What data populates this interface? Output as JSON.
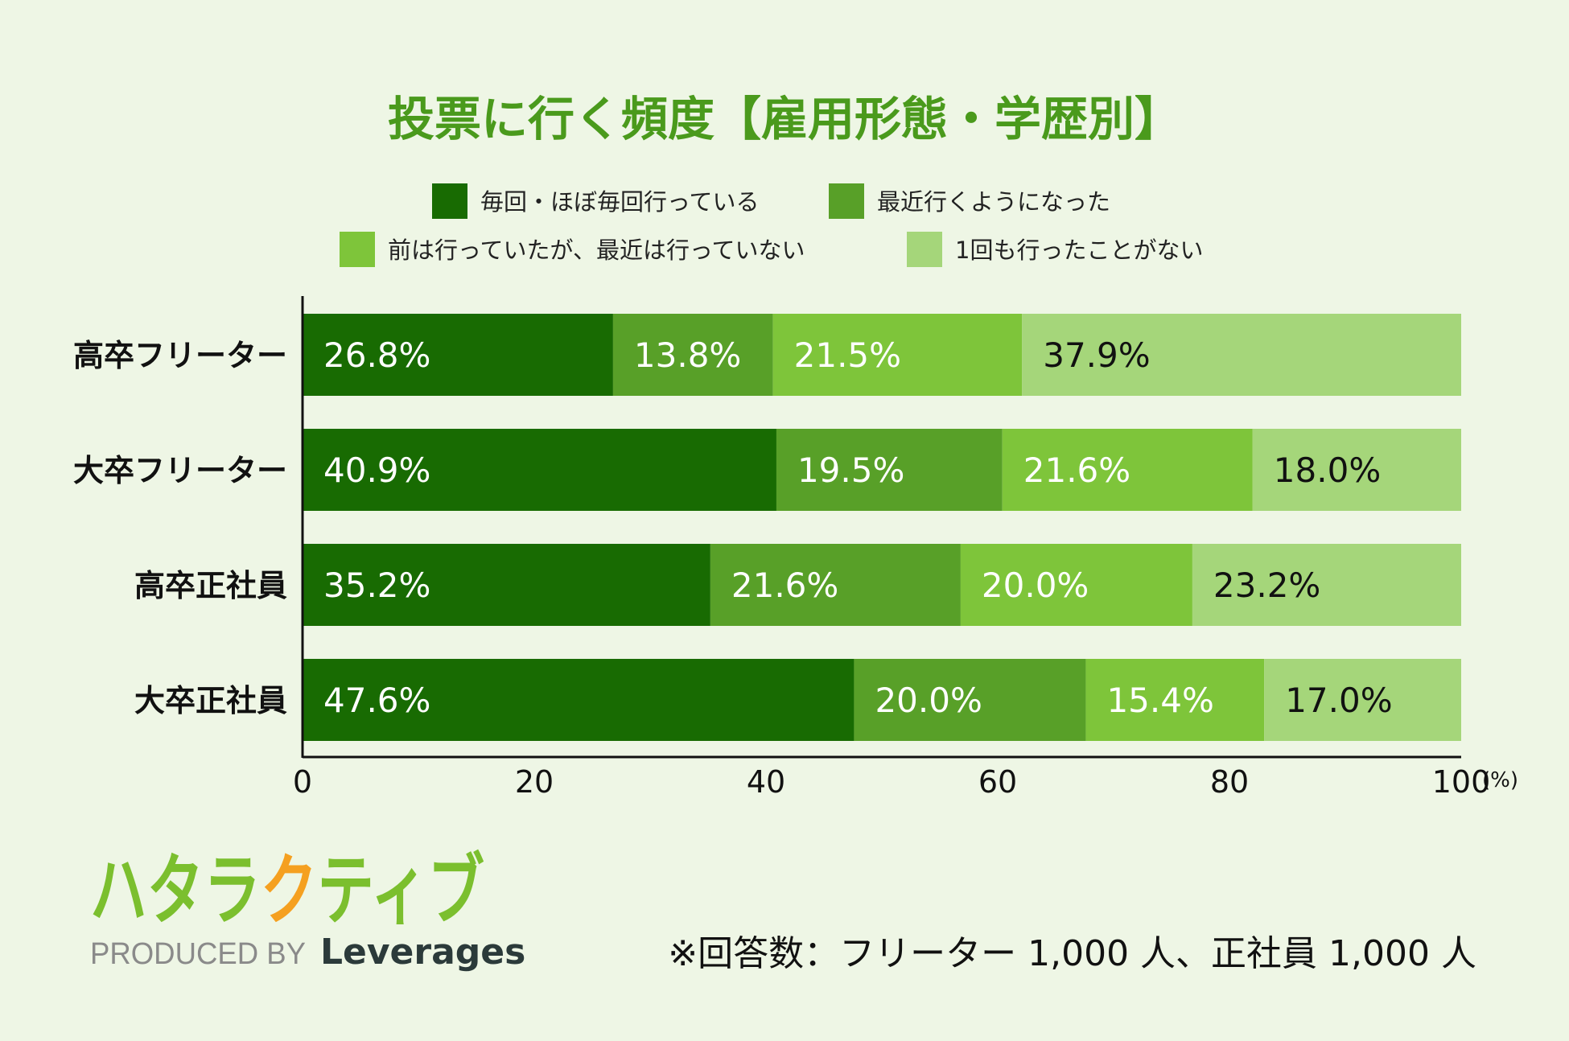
{
  "chart_data": {
    "type": "bar",
    "orientation": "horizontal",
    "stacked": true,
    "title": "投票に行く頻度【雇用形態・学歴別】",
    "categories": [
      "高卒フリーター",
      "大卒フリーター",
      "高卒正社員",
      "大卒正社員"
    ],
    "series": [
      {
        "name": "毎回・ほぼ毎回行っている",
        "color": "#186b02",
        "values": [
          26.8,
          40.9,
          35.2,
          47.6
        ]
      },
      {
        "name": "最近行くようになった",
        "color": "#58a028",
        "values": [
          13.8,
          19.5,
          21.6,
          20.0
        ]
      },
      {
        "name": "前は行っていたが、最近は行っていない",
        "color": "#7ec53a",
        "values": [
          21.5,
          21.6,
          20.0,
          15.4
        ]
      },
      {
        "name": "1回も行ったことがない",
        "color": "#a5d67a",
        "values": [
          37.9,
          18.0,
          23.2,
          17.0
        ]
      }
    ],
    "value_suffix": "%",
    "xlim": [
      0,
      100
    ],
    "x_ticks": [
      "0",
      "20",
      "40",
      "60",
      "80",
      "100"
    ],
    "x_unit": "(%)",
    "legend_position": "top",
    "grid": false
  },
  "logo": {
    "text": "ハタラクティブ",
    "produced_by": "PRODUCED BY",
    "brand": "Leverages"
  },
  "note": "※回答数：フリーター 1,000 人、正社員 1,000 人",
  "colors": {
    "title": "#4a9a1c",
    "background": "#eef6e5",
    "logo_green": "#7bbf2e",
    "logo_orange": "#f5a020"
  }
}
